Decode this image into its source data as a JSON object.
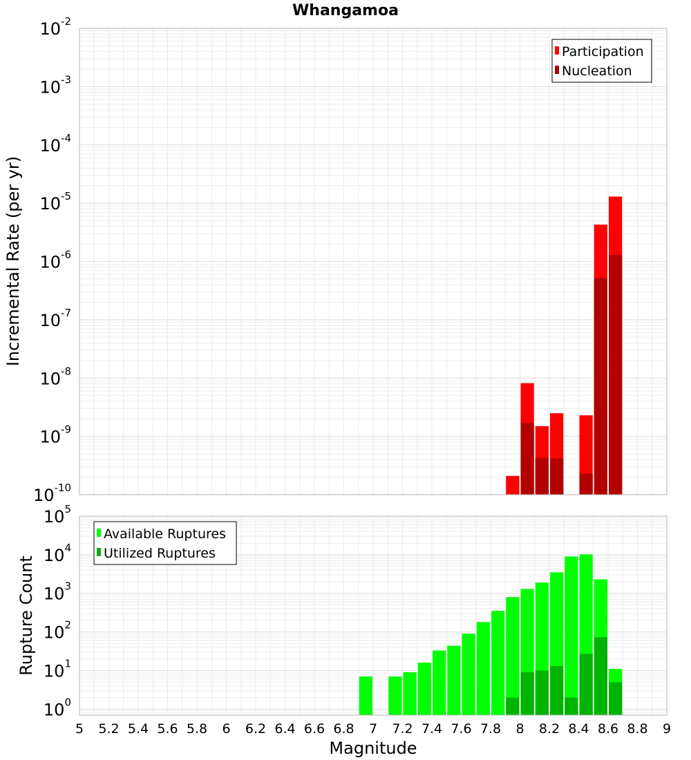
{
  "chart_data": [
    {
      "type": "bar",
      "title": "Whangamoa",
      "xlabel": "",
      "ylabel": "Incremental Rate (per yr)",
      "yscale": "log",
      "xlim": [
        5,
        9
      ],
      "ylim": [
        1e-10,
        0.01
      ],
      "grid": true,
      "legend_position": "top-right",
      "y_ticks": [
        {
          "base": "10",
          "exp": "-10",
          "value": 1e-10
        },
        {
          "base": "10",
          "exp": "-9",
          "value": 1e-09
        },
        {
          "base": "10",
          "exp": "-8",
          "value": 1e-08
        },
        {
          "base": "10",
          "exp": "-7",
          "value": 1e-07
        },
        {
          "base": "10",
          "exp": "-6",
          "value": 1e-06
        },
        {
          "base": "10",
          "exp": "-5",
          "value": 1e-05
        },
        {
          "base": "10",
          "exp": "-4",
          "value": 0.0001
        },
        {
          "base": "10",
          "exp": "-3",
          "value": 0.001
        },
        {
          "base": "10",
          "exp": "-2",
          "value": 0.01
        }
      ],
      "x": [
        7.95,
        8.05,
        8.15,
        8.25,
        8.45,
        8.55,
        8.65
      ],
      "bar_width": 0.1,
      "series": [
        {
          "name": "Participation",
          "color": "#ff0000",
          "values": [
            2.1e-10,
            8.2e-09,
            1.5e-09,
            2.5e-09,
            2.3e-09,
            4.3e-06,
            1.3e-05
          ]
        },
        {
          "name": "Nucleation",
          "color": "#b20000",
          "values": [
            null,
            1.7e-09,
            4.3e-10,
            4.2e-10,
            2.3e-10,
            5.2e-07,
            1.3e-06
          ]
        }
      ]
    },
    {
      "type": "bar",
      "title": "",
      "xlabel": "Magnitude",
      "ylabel": "Rupture Count",
      "yscale": "log",
      "xlim": [
        5,
        9
      ],
      "ylim": [
        0.7,
        100000
      ],
      "grid": true,
      "legend_position": "top-left",
      "y_ticks": [
        {
          "base": "10",
          "exp": "0",
          "value": 1
        },
        {
          "base": "10",
          "exp": "1",
          "value": 10
        },
        {
          "base": "10",
          "exp": "2",
          "value": 100
        },
        {
          "base": "10",
          "exp": "3",
          "value": 1000
        },
        {
          "base": "10",
          "exp": "4",
          "value": 10000
        },
        {
          "base": "10",
          "exp": "5",
          "value": 100000
        }
      ],
      "x_ticks": [
        "5",
        "5.2",
        "5.4",
        "5.6",
        "5.8",
        "6",
        "6.2",
        "6.4",
        "6.6",
        "6.8",
        "7",
        "7.2",
        "7.4",
        "7.6",
        "7.8",
        "8",
        "8.2",
        "8.4",
        "8.6",
        "8.8",
        "9"
      ],
      "x": [
        6.95,
        7.15,
        7.25,
        7.35,
        7.45,
        7.55,
        7.65,
        7.75,
        7.85,
        7.95,
        8.05,
        8.15,
        8.25,
        8.35,
        8.45,
        8.55,
        8.65
      ],
      "bar_width": 0.1,
      "series": [
        {
          "name": "Available Ruptures",
          "color": "#00ff00",
          "values": [
            7,
            7,
            9,
            16,
            33,
            44,
            90,
            180,
            350,
            800,
            1300,
            1900,
            3500,
            9000,
            10200,
            2300,
            11
          ]
        },
        {
          "name": "Utilized Ruptures",
          "color": "#00b300",
          "values": [
            null,
            null,
            null,
            null,
            null,
            null,
            null,
            null,
            null,
            2,
            9,
            10,
            13,
            2,
            27,
            73,
            5
          ]
        }
      ]
    }
  ]
}
